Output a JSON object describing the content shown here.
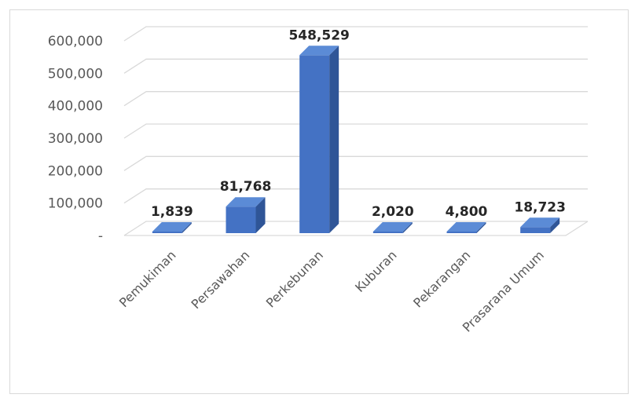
{
  "chart_data": {
    "type": "bar",
    "style": "3d-column",
    "categories": [
      "Pemukiman",
      "Persawahan",
      "Perkebunan",
      "Kuburan",
      "Pekarangan",
      "Prasarana Umum"
    ],
    "values": [
      1839,
      81768,
      548529,
      2020,
      4800,
      18723
    ],
    "data_labels": [
      "1,839",
      "81,768",
      "548,529",
      "2,020",
      "4,800",
      "18,723"
    ],
    "y_ticks": [
      0,
      100000,
      200000,
      300000,
      400000,
      500000,
      600000
    ],
    "y_tick_labels": [
      "-",
      "100,000",
      "200,000",
      "300,000",
      "400,000",
      "500,000",
      "600,000"
    ],
    "ylim": [
      0,
      600000
    ],
    "grid": true,
    "legend": "none",
    "colors": {
      "bar": "#4472c4",
      "bar_top": "#5b8bd6",
      "bar_side": "#2f5597",
      "grid": "#d9d9d9",
      "text": "#595959",
      "label": "#262626"
    }
  }
}
